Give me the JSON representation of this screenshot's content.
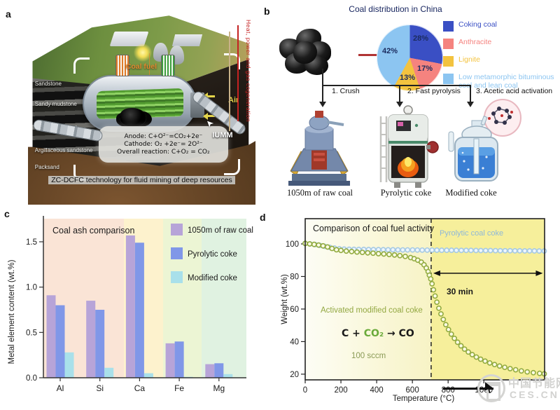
{
  "panel_a": {
    "label": "a",
    "strata": [
      "Sandstone",
      "Sandy mudstone",
      "Coal seam group",
      "Argillaceous sandstone",
      "Packsand"
    ],
    "coal_fuel": "Coal fuel",
    "air": "Air",
    "iumm": "IUMM",
    "vertical_note": "Heat, power and gas cogeneration",
    "anode": "Anode: C+O²⁻=CO₂+2e⁻",
    "cathode": "Cathode: O₂ +2e⁻= 2O²⁻",
    "overall": "Overall reaction: C+O₂ = CO₂",
    "caption": "ZC-DCFC technology for fluid mining of deep resources"
  },
  "panel_b": {
    "label": "b",
    "title": "Coal distribution in China",
    "steps": [
      "1. Crush",
      "2. Fast pyrolysis",
      "3. Acetic acid activation"
    ],
    "equipment": [
      "1050m of raw coal",
      "Pyrolytic coke",
      "Modified coke"
    ]
  },
  "panel_c": {
    "label": "c"
  },
  "panel_d": {
    "label": "d"
  },
  "watermark": {
    "site_name": "中国节能网",
    "domain": "CES.CN"
  },
  "chart_data": [
    {
      "type": "pie",
      "title": "Coal distribution in China",
      "legend_position": "right",
      "start_angle_deg": 0,
      "slices": [
        {
          "label": "Coking coal",
          "value": 28,
          "color": "#3a4fc4"
        },
        {
          "label": "Anthracite",
          "value": 17,
          "color": "#f5837f"
        },
        {
          "label": "Lignite",
          "value": 13,
          "color": "#f3c33f"
        },
        {
          "label": "Low metamorphic bituminous coal and lean coal",
          "value": 42,
          "color": "#8cc5f1"
        }
      ]
    },
    {
      "type": "bar",
      "title": "Coal ash comparison",
      "ylabel": "Metal element content (wt.%)",
      "categories": [
        "Al",
        "Si",
        "Ca",
        "Fe",
        "Mg"
      ],
      "series": [
        {
          "name": "1050m of raw coal",
          "color": "#b7a4d8",
          "values": [
            0.91,
            0.85,
            1.57,
            0.38,
            0.15
          ]
        },
        {
          "name": "Pyrolytic coke",
          "color": "#8097e8",
          "values": [
            0.8,
            0.75,
            1.49,
            0.4,
            0.16
          ]
        },
        {
          "name": "Modified coke",
          "color": "#a9e0ea",
          "values": [
            0.28,
            0.11,
            0.05,
            0.01,
            0.04
          ]
        }
      ],
      "ylim": [
        0,
        1.755
      ],
      "yticks": [
        0.0,
        0.5,
        1.0,
        1.5
      ],
      "grid": false,
      "legend_position": "top-right",
      "background_bands": [
        "#fae4d6",
        "#fdf2cd",
        "#ecf5d4",
        "#e0f2e1"
      ]
    },
    {
      "type": "line",
      "title": "Comparison of coal fuel activity",
      "xlabel": "Temperature (°C)",
      "ylabel": "Weight (wt.%)",
      "xlim": [
        0,
        1340
      ],
      "ylim": [
        16.5,
        115.5
      ],
      "xticks": [
        0,
        200,
        400,
        600,
        800,
        1000
      ],
      "yticks": [
        20,
        40,
        60,
        80,
        100
      ],
      "grid": false,
      "dashed_line_x": 705,
      "hold_region_color": "#f6ef9b",
      "ramp_gradient": [
        "#fdfdf5",
        "#f7f3c5"
      ],
      "hold_arrow": {
        "y": 82,
        "x1": 705,
        "x2": 1330,
        "label": "30 min"
      },
      "annotations": {
        "flow": "100 sccm",
        "reaction_parts": [
          "C + ",
          "CO₂",
          " → ",
          "CO"
        ],
        "reaction_colors": [
          "#1a1a1a",
          "#6aaa3a",
          "#1a1a1a",
          "#1a1a1a"
        ]
      },
      "series": [
        {
          "name": "Pyrolytic coal coke",
          "color": "#a5c9e5",
          "fill": "#eef6fc",
          "label_color": "#8fb8d8",
          "x": [
            0,
            27,
            55,
            82,
            109,
            137,
            164,
            191,
            218,
            246,
            273,
            300,
            328,
            355,
            382,
            410,
            437,
            464,
            491,
            519,
            546,
            573,
            601,
            628,
            655,
            683,
            710,
            737,
            764,
            792,
            819,
            846,
            874,
            901,
            928,
            956,
            983,
            1010,
            1037,
            1065,
            1092,
            1119,
            1147,
            1174,
            1201,
            1229,
            1256,
            1283,
            1310,
            1338
          ],
          "y": [
            100.3,
            100.0,
            99.6,
            99.1,
            98.5,
            97.9,
            97.4,
            97.0,
            96.8,
            96.7,
            96.65,
            96.6,
            96.6,
            96.55,
            96.5,
            96.5,
            96.45,
            96.4,
            96.4,
            96.35,
            96.3,
            96.3,
            96.3,
            96.25,
            96.2,
            96.2,
            96.2,
            96.15,
            96.1,
            96.1,
            96.1,
            96.05,
            96.0,
            96.0,
            96.0,
            95.95,
            95.9,
            95.9,
            95.9,
            95.85,
            95.8,
            95.8,
            95.8,
            95.75,
            95.75,
            95.7,
            95.7,
            95.7,
            95.65,
            95.65
          ]
        },
        {
          "name": "Activated modified coal coke",
          "color": "#92ab40",
          "fill": "#fcfce6",
          "label_color": "#93a842",
          "x": [
            0,
            25,
            50,
            75,
            100,
            125,
            150,
            175,
            200,
            230,
            260,
            290,
            320,
            350,
            380,
            410,
            440,
            470,
            500,
            530,
            560,
            590,
            610,
            630,
            650,
            665,
            678,
            688,
            695,
            703,
            710,
            718,
            727,
            737,
            748,
            760,
            773,
            787,
            802,
            818,
            835,
            853,
            872,
            892,
            913,
            935,
            958,
            982,
            1007,
            1033,
            1060,
            1088,
            1117,
            1147,
            1178,
            1210,
            1243,
            1277,
            1312,
            1338
          ],
          "y": [
            100.3,
            100.0,
            99.7,
            99.3,
            98.8,
            98.1,
            97.2,
            96.4,
            96.0,
            95.6,
            95.3,
            95.0,
            94.8,
            94.5,
            94.3,
            94.0,
            93.8,
            93.5,
            93.2,
            92.8,
            92.3,
            91.6,
            90.9,
            90.0,
            88.8,
            87.2,
            85.2,
            83.0,
            80.8,
            78.5,
            75.5,
            71.8,
            68.0,
            64.2,
            60.5,
            57.0,
            53.6,
            50.4,
            47.4,
            44.6,
            42.0,
            39.6,
            37.4,
            35.4,
            33.6,
            32.0,
            30.5,
            29.2,
            28.0,
            26.9,
            25.9,
            25.0,
            24.2,
            23.4,
            22.7,
            22.0,
            21.4,
            20.9,
            20.5,
            20.2
          ]
        }
      ]
    }
  ]
}
